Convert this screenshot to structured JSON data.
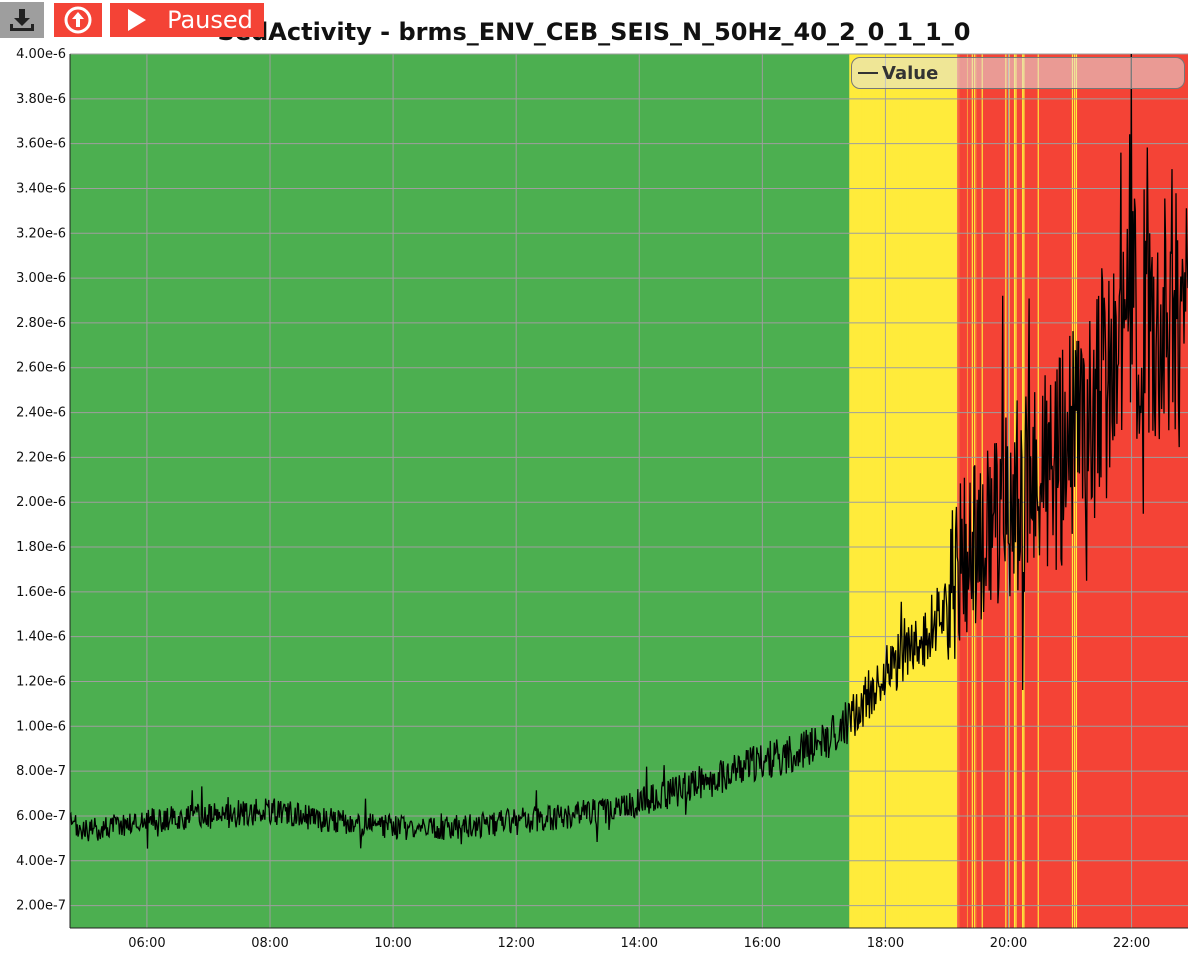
{
  "toolbar": {
    "download_icon": "download-icon",
    "upload_icon": "upload-arrow-icon",
    "play_icon": "play-icon",
    "status_label": "Paused"
  },
  "colors": {
    "green": "#4caf50",
    "yellow": "#ffeb3b",
    "red": "#f44336",
    "line": "#000000",
    "button": "#f44336"
  },
  "chart_data": {
    "type": "line",
    "title": "SedActivity - brms_ENV_CEB_SEIS_N_50Hz_40_2_0_1_1_0",
    "xlabel": "",
    "ylabel": "",
    "x_range": [
      "04:45",
      "22:55"
    ],
    "ylim": [
      1e-07,
      4e-06
    ],
    "grid": true,
    "legend": {
      "entries": [
        "Value"
      ],
      "placement": "top-right"
    },
    "x_ticks": [
      "06:00",
      "08:00",
      "10:00",
      "12:00",
      "14:00",
      "16:00",
      "18:00",
      "20:00",
      "22:00"
    ],
    "y_ticks": [
      "2.00e-7",
      "4.00e-7",
      "6.00e-7",
      "8.00e-7",
      "1.00e-6",
      "1.20e-6",
      "1.40e-6",
      "1.60e-6",
      "1.80e-6",
      "2.00e-6",
      "2.20e-6",
      "2.40e-6",
      "2.60e-6",
      "2.80e-6",
      "3.00e-6",
      "3.20e-6",
      "3.40e-6",
      "3.60e-6",
      "3.80e-6",
      "4.00e-6"
    ],
    "background_zones": [
      {
        "from": "04:45",
        "to": "17:25",
        "level": "green"
      },
      {
        "from": "17:25",
        "to": "19:10",
        "level": "yellow"
      },
      {
        "from": "19:10",
        "to": "22:55",
        "level": "red"
      }
    ],
    "series": [
      {
        "name": "Value",
        "x": [
          "04:45",
          "05:00",
          "05:30",
          "06:00",
          "06:30",
          "07:00",
          "07:30",
          "08:00",
          "08:30",
          "09:00",
          "09:30",
          "10:00",
          "10:30",
          "11:00",
          "11:30",
          "12:00",
          "12:30",
          "13:00",
          "13:30",
          "14:00",
          "14:30",
          "15:00",
          "15:30",
          "16:00",
          "16:30",
          "17:00",
          "17:15",
          "17:30",
          "17:45",
          "18:00",
          "18:15",
          "18:30",
          "18:45",
          "19:00",
          "19:15",
          "19:30",
          "19:45",
          "20:00",
          "20:15",
          "20:30",
          "20:45",
          "21:00",
          "21:15",
          "21:30",
          "21:45",
          "22:00",
          "22:15",
          "22:30",
          "22:45",
          "22:55"
        ],
        "values": [
          5.6e-07,
          5.3e-07,
          5.6e-07,
          5.8e-07,
          5.9e-07,
          6e-07,
          6.1e-07,
          6.2e-07,
          6e-07,
          5.8e-07,
          5.6e-07,
          5.5e-07,
          5.4e-07,
          5.5e-07,
          5.6e-07,
          5.8e-07,
          5.9e-07,
          6.1e-07,
          6.3e-07,
          6.6e-07,
          7e-07,
          7.5e-07,
          8e-07,
          8.4e-07,
          8.8e-07,
          9.2e-07,
          9.8e-07,
          1.05e-06,
          1.15e-06,
          1.25e-06,
          1.3e-06,
          1.35e-06,
          1.45e-06,
          1.55e-06,
          1.75e-06,
          1.8e-06,
          1.9e-06,
          2e-06,
          2.05e-06,
          2.1e-06,
          2.15e-06,
          2.25e-06,
          2.35e-06,
          2.5e-06,
          2.65e-06,
          2.8e-06,
          2.95e-06,
          2.9e-06,
          2.85e-06,
          2.7e-06
        ]
      }
    ]
  }
}
